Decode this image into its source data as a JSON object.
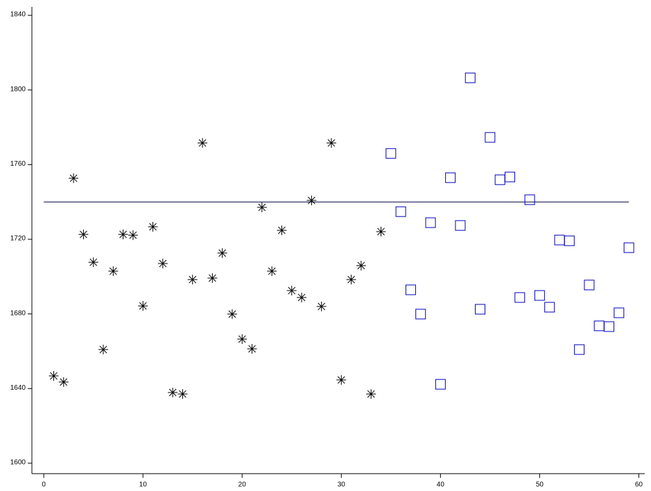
{
  "chart_data": {
    "type": "scatter",
    "xlim": [
      -1.2,
      60.6
    ],
    "ylim": [
      1594.4,
      1844.5
    ],
    "xticks": [
      0,
      10,
      20,
      30,
      40,
      50,
      60
    ],
    "yticks": [
      1600,
      1640,
      1680,
      1720,
      1760,
      1800,
      1840
    ],
    "hline": {
      "y": 1740,
      "x": [
        0,
        59
      ],
      "color": "#000040"
    },
    "series": [
      {
        "marker": "asterisk",
        "color": "#000000",
        "x": [
          1,
          2,
          3,
          4,
          5,
          6,
          7,
          8,
          9,
          10,
          11,
          12,
          13,
          14,
          15,
          16,
          17,
          18,
          19,
          20,
          21,
          22,
          23,
          24,
          25,
          26,
          27,
          28,
          29,
          30,
          31,
          32,
          33,
          34
        ],
        "values": [
          1646.8,
          1643.5,
          1752.7,
          1722.6,
          1707.7,
          1660.9,
          1702.9,
          1722.6,
          1722.2,
          1684.3,
          1726.7,
          1707.0,
          1637.9,
          1637.1,
          1698.4,
          1771.6,
          1699.2,
          1712.6,
          1679.9,
          1666.5,
          1661.3,
          1737.1,
          1702.9,
          1724.8,
          1692.5,
          1688.8,
          1740.8,
          1684.0,
          1771.6,
          1644.6,
          1698.4,
          1705.9,
          1637.1,
          1724.1
        ]
      },
      {
        "marker": "square",
        "color": "#0000bb",
        "x": [
          35,
          36,
          37,
          38,
          39,
          40,
          41,
          42,
          43,
          44,
          45,
          46,
          47,
          48,
          49,
          50,
          51,
          52,
          53,
          54,
          55,
          56,
          57,
          58,
          59
        ],
        "values": [
          1766.0,
          1734.8,
          1692.9,
          1679.9,
          1728.9,
          1642.3,
          1753.0,
          1727.4,
          1806.5,
          1682.5,
          1774.6,
          1751.9,
          1753.4,
          1688.8,
          1741.2,
          1689.9,
          1683.6,
          1719.6,
          1719.2,
          1660.9,
          1695.5,
          1673.6,
          1673.2,
          1680.6,
          1715.5
        ]
      }
    ]
  }
}
